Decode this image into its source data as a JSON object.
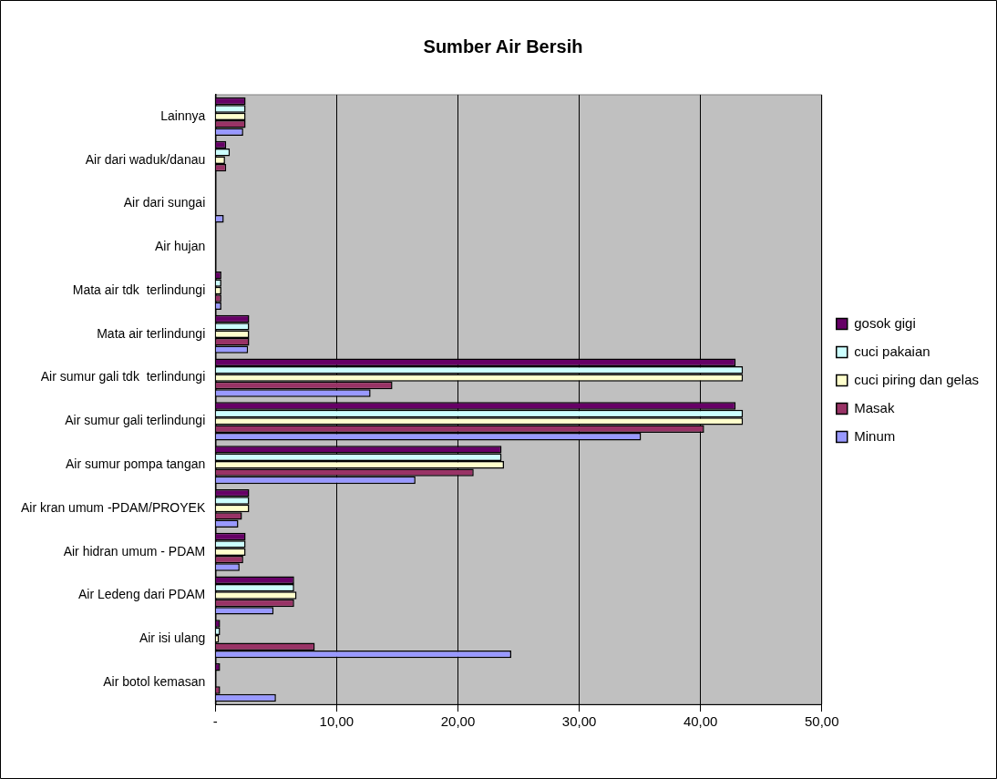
{
  "chart_data": {
    "type": "bar",
    "orientation": "horizontal",
    "title": "Sumber Air Bersih",
    "categories": [
      "Lainnya",
      "Air dari waduk/danau",
      "Air dari sungai",
      "Air hujan",
      "Mata air tdk  terlindungi",
      "Mata air terlindungi",
      "Air sumur gali tdk  terlindungi",
      "Air sumur gali terlindungi",
      "Air sumur pompa tangan",
      "Air kran umum -PDAM/PROYEK",
      "Air hidran umum - PDAM",
      "Air Ledeng dari PDAM",
      "Air isi ulang",
      "Air botol kemasan"
    ],
    "series": [
      {
        "name": "gosok gigi",
        "color": "#660066",
        "values": [
          2.5,
          0.9,
          0,
          0,
          0.5,
          2.8,
          42.9,
          42.9,
          23.6,
          2.8,
          2.5,
          6.5,
          0.4,
          0.4
        ]
      },
      {
        "name": "cuci pakaian",
        "color": "#ccffff",
        "values": [
          2.5,
          1.2,
          0,
          0,
          0.5,
          2.8,
          43.5,
          43.5,
          23.6,
          2.8,
          2.5,
          6.5,
          0.4,
          0
        ]
      },
      {
        "name": "cuci piring dan gelas",
        "color": "#ffffcc",
        "values": [
          2.5,
          0.8,
          0,
          0,
          0.5,
          2.8,
          43.5,
          43.5,
          23.8,
          2.8,
          2.5,
          6.7,
          0.3,
          0
        ]
      },
      {
        "name": "Masak",
        "color": "#993366",
        "values": [
          2.5,
          0.9,
          0,
          0,
          0.5,
          2.8,
          14.6,
          40.3,
          21.3,
          2.2,
          2.3,
          6.5,
          8.2,
          0.4
        ]
      },
      {
        "name": "Minum",
        "color": "#9999ff",
        "values": [
          2.3,
          0,
          0.7,
          0,
          0.5,
          2.7,
          12.8,
          35.1,
          16.5,
          1.9,
          2.0,
          4.8,
          24.4,
          5.0
        ]
      }
    ],
    "xlim": [
      0,
      50
    ],
    "xticks": [
      {
        "value": 0,
        "label": "-"
      },
      {
        "value": 10,
        "label": "10,00"
      },
      {
        "value": 20,
        "label": "20,00"
      },
      {
        "value": 30,
        "label": "30,00"
      },
      {
        "value": 40,
        "label": "40,00"
      },
      {
        "value": 50,
        "label": "50,00"
      }
    ],
    "grid": "x",
    "legend": "right"
  }
}
